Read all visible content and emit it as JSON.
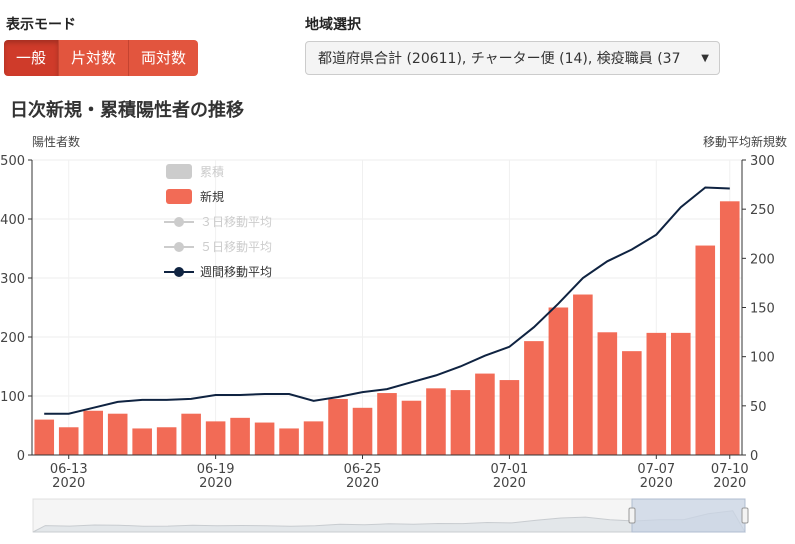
{
  "controls": {
    "mode_label": "表示モード",
    "mode_buttons": [
      "一般",
      "片対数",
      "両対数"
    ],
    "active_mode": 0,
    "region_label": "地域選択",
    "region_value": "都道府県合計 (20611), チャーター便 (14), 検疫職員 (37"
  },
  "title": "日次新規・累積陽性者の推移",
  "colors": {
    "bar": "#f26b56",
    "line": "#0f2341",
    "accent": "#d9453a"
  },
  "chart_data": {
    "type": "bar",
    "title": "日次新規・累積陽性者の推移",
    "ylabel": "陽性者数",
    "y2label": "移動平均新規数",
    "ylim": [
      0,
      500
    ],
    "y2lim": [
      0,
      300
    ],
    "yticks": [
      0,
      100,
      200,
      300,
      400,
      500
    ],
    "y2ticks": [
      0,
      50,
      100,
      150,
      200,
      250,
      300
    ],
    "x": [
      "2020-06-12",
      "2020-06-13",
      "2020-06-14",
      "2020-06-15",
      "2020-06-16",
      "2020-06-17",
      "2020-06-18",
      "2020-06-19",
      "2020-06-20",
      "2020-06-21",
      "2020-06-22",
      "2020-06-23",
      "2020-06-24",
      "2020-06-25",
      "2020-06-26",
      "2020-06-27",
      "2020-06-28",
      "2020-06-29",
      "2020-06-30",
      "2020-07-01",
      "2020-07-02",
      "2020-07-03",
      "2020-07-04",
      "2020-07-05",
      "2020-07-06",
      "2020-07-07",
      "2020-07-08",
      "2020-07-09",
      "2020-07-10"
    ],
    "xticks": [
      {
        "date": "2020-06-13",
        "l1": "06-13",
        "l2": "2020"
      },
      {
        "date": "2020-06-19",
        "l1": "06-19",
        "l2": "2020"
      },
      {
        "date": "2020-06-25",
        "l1": "06-25",
        "l2": "2020"
      },
      {
        "date": "2020-07-01",
        "l1": "07-01",
        "l2": "2020"
      },
      {
        "date": "2020-07-07",
        "l1": "07-07",
        "l2": "2020"
      },
      {
        "date": "2020-07-10",
        "l1": "07-10",
        "l2": "2020"
      }
    ],
    "series": [
      {
        "name": "新規",
        "kind": "bar",
        "axis": "left",
        "values": [
          60,
          47,
          75,
          70,
          45,
          47,
          70,
          57,
          63,
          55,
          45,
          57,
          95,
          80,
          105,
          92,
          113,
          110,
          138,
          127,
          193,
          250,
          272,
          208,
          176,
          207,
          207,
          355,
          430
        ]
      },
      {
        "name": "週間移動平均",
        "kind": "line",
        "axis": "right",
        "values": [
          42,
          42,
          48,
          54,
          56,
          56,
          57,
          61,
          61,
          62,
          62,
          55,
          59,
          64,
          67,
          74,
          81,
          90,
          101,
          110,
          130,
          154,
          180,
          197,
          209,
          224,
          252,
          272,
          271
        ]
      }
    ],
    "legend": [
      {
        "name": "累積",
        "type": "bar",
        "enabled": false
      },
      {
        "name": "新規",
        "type": "bar",
        "enabled": true
      },
      {
        "name": "３日移動平均",
        "type": "line",
        "enabled": false
      },
      {
        "name": "５日移動平均",
        "type": "line",
        "enabled": false
      },
      {
        "name": "週間移動平均",
        "type": "line",
        "enabled": true
      }
    ],
    "legend_position": "top-left",
    "grid": true
  }
}
